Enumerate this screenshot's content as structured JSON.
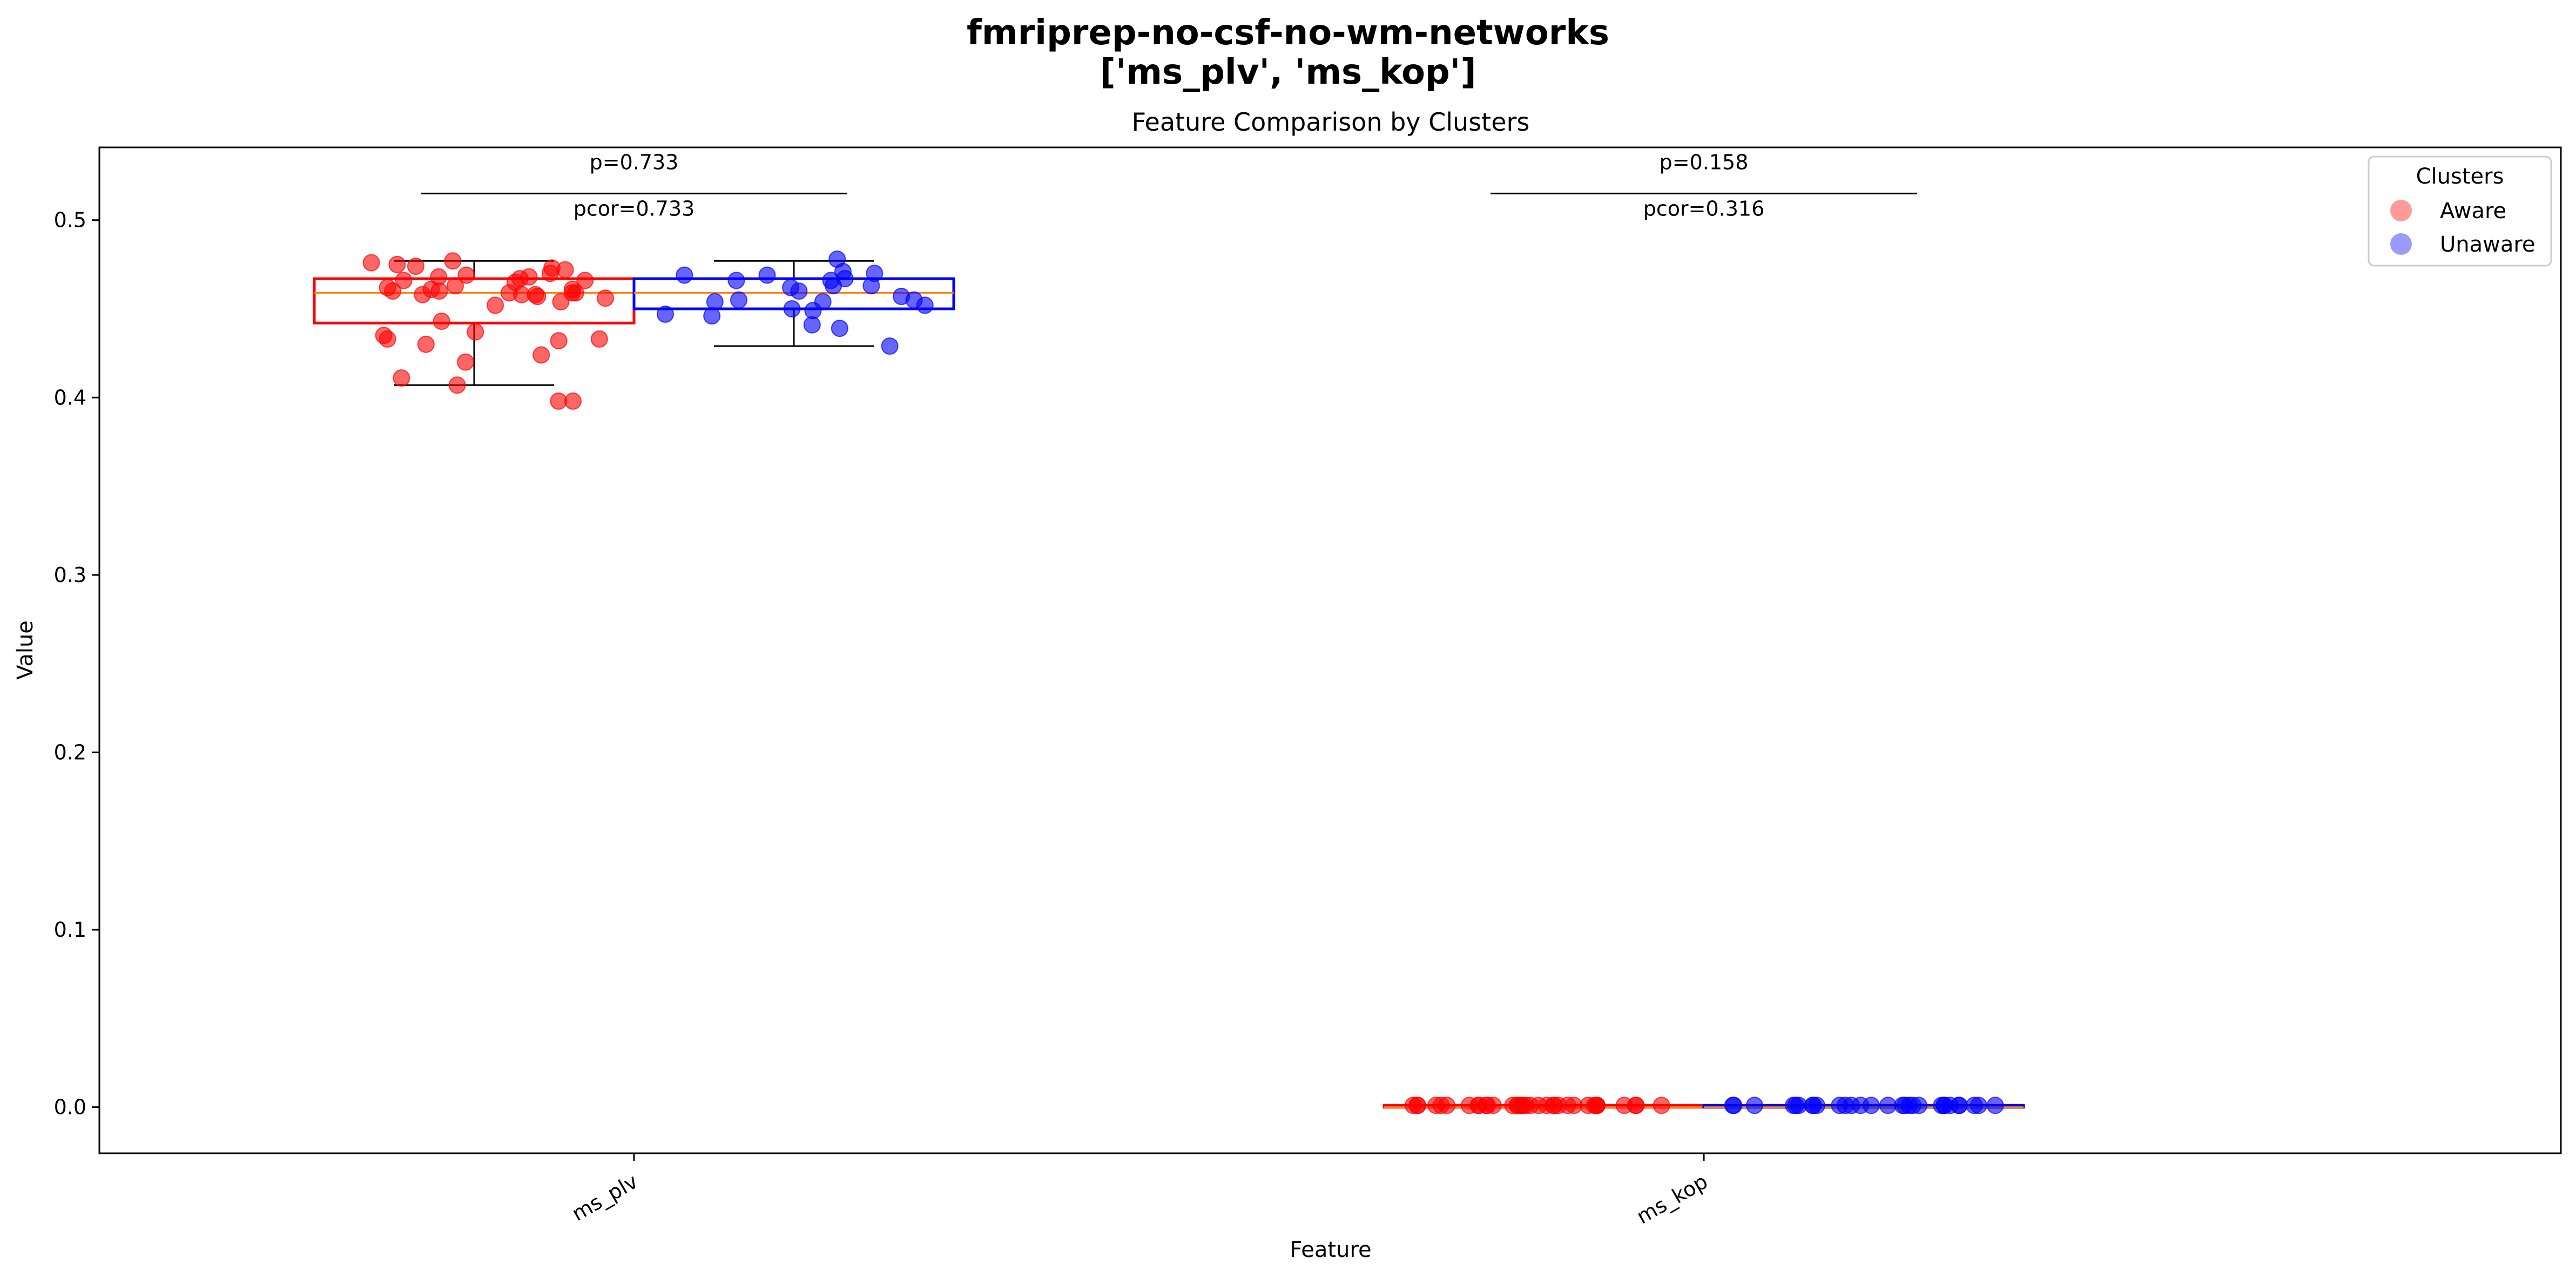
{
  "chart_data": {
    "type": "box+strip",
    "suptitle_line1": "fmriprep-no-csf-no-wm-networks",
    "suptitle_line2": "['ms_plv', 'ms_kop']",
    "title": "Feature Comparison by Clusters",
    "xlabel": "Feature",
    "ylabel": "Value",
    "categories": [
      "ms_plv",
      "ms_kop"
    ],
    "ylim": [
      -0.026,
      0.541
    ],
    "yticks": [
      0.0,
      0.1,
      0.2,
      0.3,
      0.4,
      0.5
    ],
    "ytick_labels": [
      "0.0",
      "0.1",
      "0.2",
      "0.3",
      "0.4",
      "0.5"
    ],
    "grid": false,
    "legend": {
      "title": "Clusters",
      "placement": "top-right",
      "entries": [
        {
          "label": "Aware",
          "color": "#ff9a9a"
        },
        {
          "label": "Unaware",
          "color": "#9a9aff"
        }
      ]
    },
    "series": [
      {
        "name": "Aware",
        "color": "#ff0000",
        "boxes": [
          {
            "category": "ms_plv",
            "whisker_low": 0.407,
            "q1": 0.442,
            "median": 0.459,
            "q3": 0.467,
            "whisker_high": 0.477
          },
          {
            "category": "ms_kop",
            "whisker_low": 0.0,
            "q1": 0.0,
            "median": 0.0,
            "q3": 0.001,
            "whisker_high": 0.001
          }
        ],
        "points": {
          "ms_plv": [
            0.465,
            0.458,
            0.459,
            0.456,
            0.458,
            0.467,
            0.462,
            0.459,
            0.468,
            0.454,
            0.457,
            0.461,
            0.473,
            0.46,
            0.452,
            0.466,
            0.475,
            0.47,
            0.461,
            0.472,
            0.476,
            0.469,
            0.458,
            0.468,
            0.474,
            0.46,
            0.466,
            0.459,
            0.477,
            0.463,
            0.432,
            0.433,
            0.435,
            0.43,
            0.443,
            0.437,
            0.433,
            0.42,
            0.424,
            0.411,
            0.407,
            0.398,
            0.398
          ],
          "ms_kop": [
            0.001,
            0.001,
            0.001,
            0.001,
            0.001,
            0.001,
            0.001,
            0.001,
            0.001,
            0.001,
            0.001,
            0.001,
            0.001,
            0.001,
            0.001,
            0.001,
            0.001,
            0.001,
            0.001,
            0.001,
            0.001,
            0.001,
            0.001,
            0.001,
            0.001,
            0.001,
            0.001,
            0.001,
            0.001,
            0.001,
            0.001,
            0.001,
            0.001,
            0.001,
            0.001
          ]
        }
      },
      {
        "name": "Unaware",
        "color": "#0000ff",
        "boxes": [
          {
            "category": "ms_plv",
            "whisker_low": 0.429,
            "q1": 0.45,
            "median": 0.459,
            "q3": 0.467,
            "whisker_high": 0.477
          },
          {
            "category": "ms_kop",
            "whisker_low": 0.0,
            "q1": 0.0,
            "median": 0.0,
            "q3": 0.001,
            "whisker_high": 0.001
          }
        ],
        "points": {
          "ms_plv": [
            0.478,
            0.455,
            0.462,
            0.455,
            0.454,
            0.46,
            0.457,
            0.454,
            0.447,
            0.466,
            0.463,
            0.469,
            0.47,
            0.471,
            0.466,
            0.463,
            0.452,
            0.45,
            0.446,
            0.441,
            0.439,
            0.429,
            0.449,
            0.467,
            0.469
          ],
          "ms_kop": [
            0.001,
            0.001,
            0.001,
            0.001,
            0.001,
            0.001,
            0.001,
            0.001,
            0.001,
            0.001,
            0.001,
            0.001,
            0.001,
            0.001,
            0.001,
            0.001,
            0.001,
            0.001,
            0.001,
            0.001,
            0.001,
            0.001,
            0.001,
            0.001,
            0.001,
            0.001,
            0.001,
            0.001,
            0.001
          ]
        }
      }
    ],
    "significance": [
      {
        "category": "ms_plv",
        "p_label": "p=0.733",
        "pcor_label": "pcor=0.733",
        "bar_y": 0.515
      },
      {
        "category": "ms_kop",
        "p_label": "p=0.158",
        "pcor_label": "pcor=0.316",
        "bar_y": 0.515
      }
    ]
  }
}
